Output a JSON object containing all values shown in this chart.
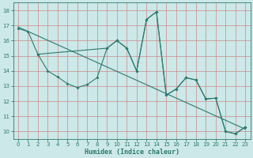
{
  "xlabel": "Humidex (Indice chaleur)",
  "background_color": "#cce8e8",
  "grid_color": "#cc8888",
  "line_color": "#2d7a6e",
  "xlim": [
    -0.5,
    23.5
  ],
  "ylim": [
    9.5,
    18.5
  ],
  "yticks": [
    10,
    11,
    12,
    13,
    14,
    15,
    16,
    17,
    18
  ],
  "xticks": [
    0,
    1,
    2,
    3,
    4,
    5,
    6,
    7,
    8,
    9,
    10,
    11,
    12,
    13,
    14,
    15,
    16,
    17,
    18,
    19,
    20,
    21,
    22,
    23
  ],
  "line1_x": [
    0,
    1,
    2,
    9,
    10,
    11,
    12,
    13,
    14,
    15,
    16,
    17,
    18,
    19,
    20,
    21,
    22,
    23
  ],
  "line1_y": [
    16.8,
    16.6,
    15.1,
    15.5,
    16.0,
    15.5,
    14.0,
    17.4,
    17.9,
    12.4,
    12.8,
    13.55,
    13.4,
    12.15,
    12.2,
    10.0,
    9.85,
    10.3
  ],
  "line2_x": [
    2,
    3,
    4,
    5,
    6,
    7,
    8,
    9,
    10,
    11,
    12,
    13,
    14,
    15,
    16,
    17,
    18,
    19,
    20,
    21,
    22,
    23
  ],
  "line2_y": [
    15.1,
    14.0,
    13.6,
    13.15,
    12.9,
    13.1,
    13.55,
    15.5,
    16.0,
    15.5,
    14.0,
    17.4,
    17.9,
    12.4,
    12.8,
    13.55,
    13.4,
    12.15,
    12.2,
    10.0,
    9.85,
    10.3
  ],
  "trend_x": [
    0,
    23
  ],
  "trend_y": [
    16.9,
    10.15
  ]
}
